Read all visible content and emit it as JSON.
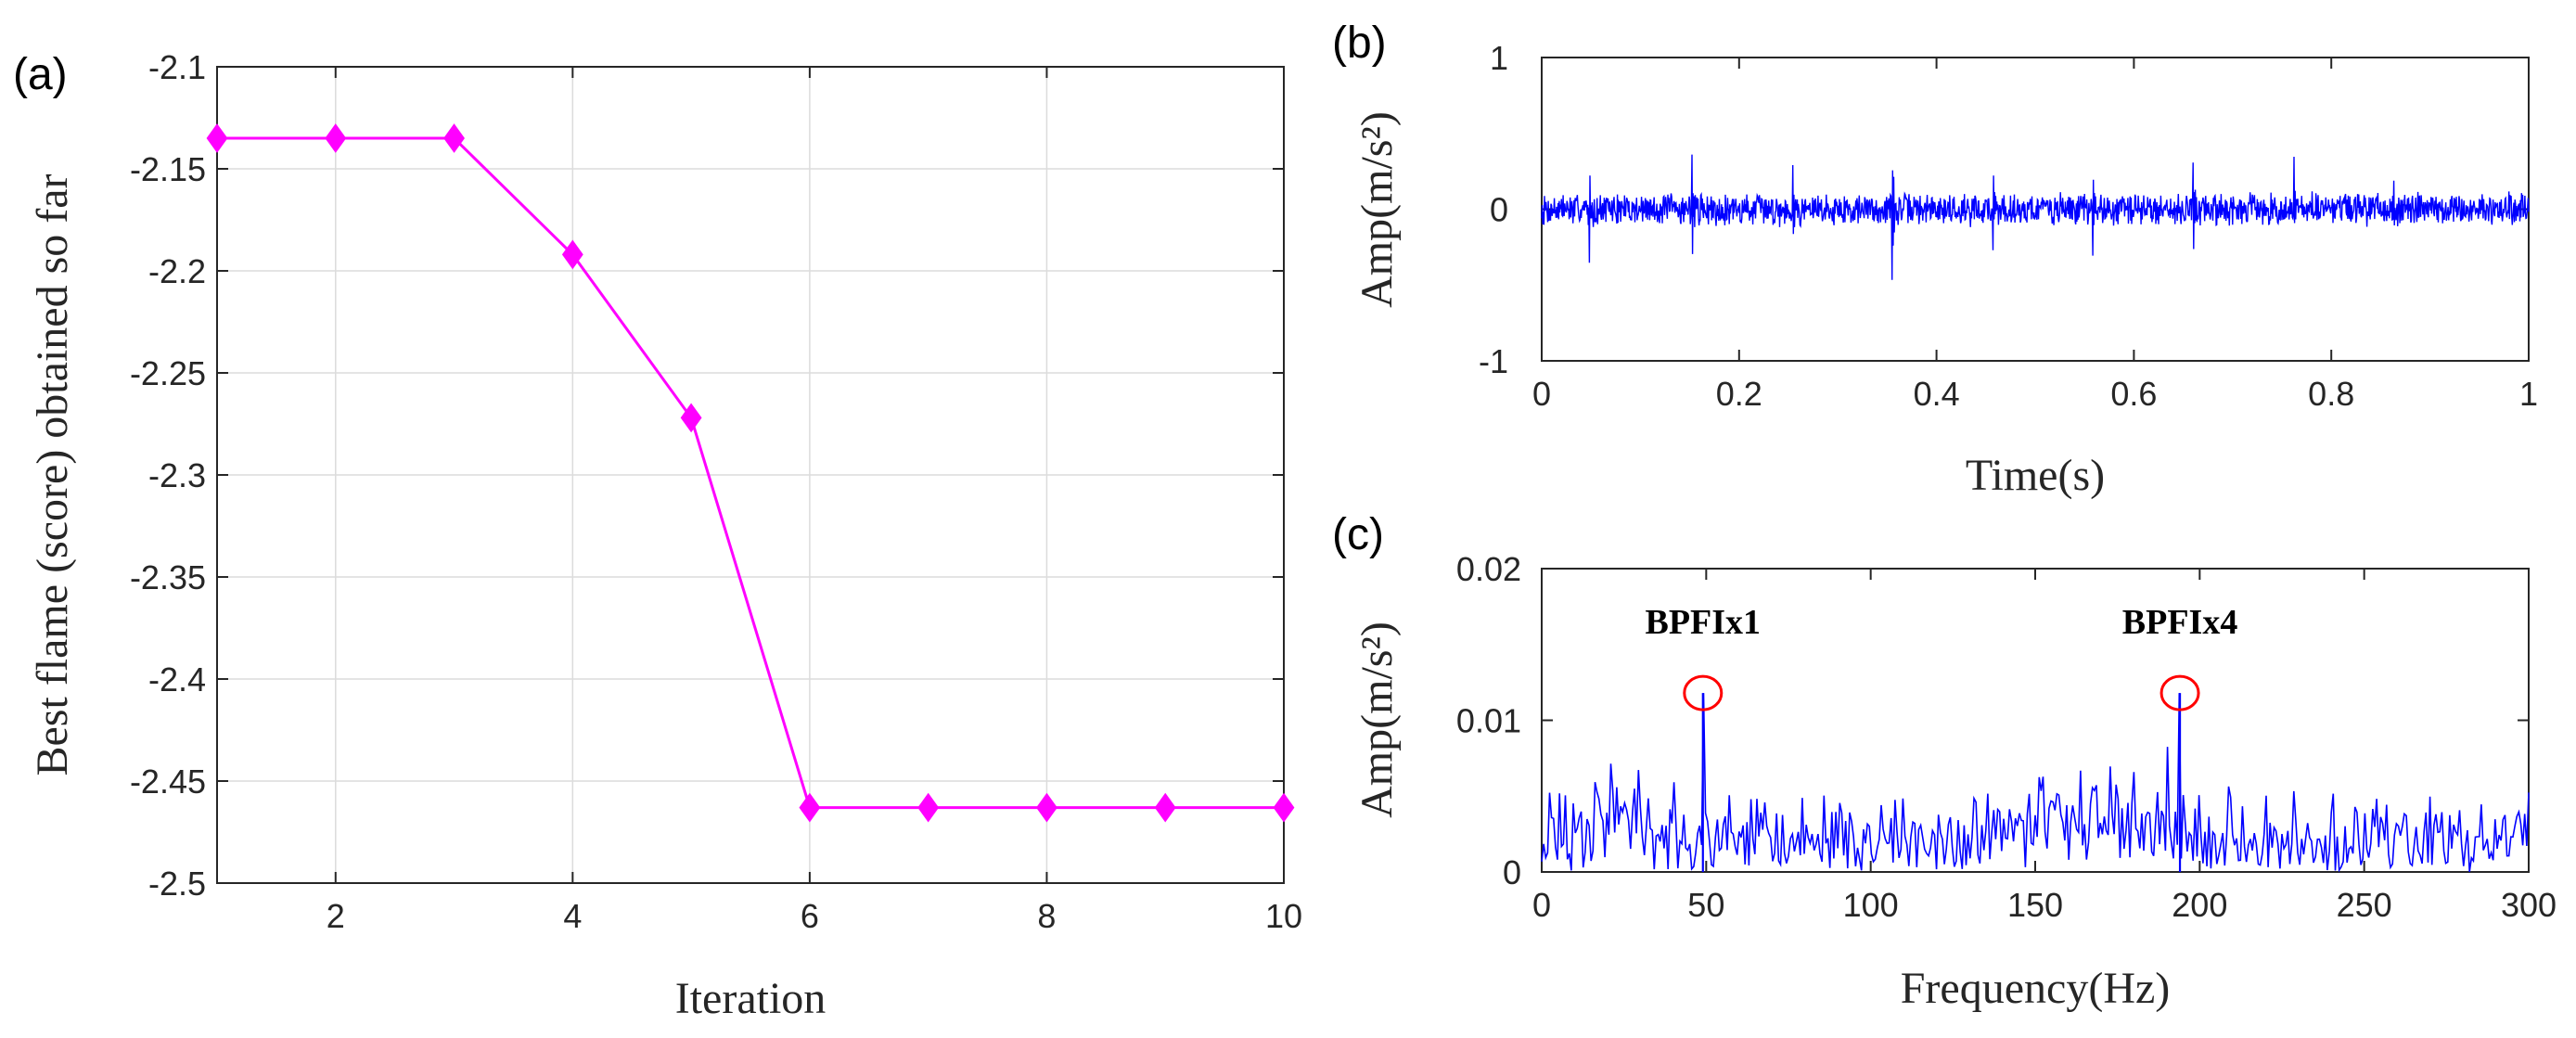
{
  "chart_data": [
    {
      "panel": "(a)",
      "type": "line",
      "xlabel": "Iteration",
      "ylabel": "Best flame (score) obtained so far",
      "xlim": [
        1,
        10
      ],
      "ylim": [
        -2.5,
        -2.1
      ],
      "xticks": [
        2,
        4,
        6,
        8,
        10
      ],
      "yticks": [
        -2.1,
        -2.15,
        -2.2,
        -2.25,
        -2.3,
        -2.35,
        -2.4,
        -2.45,
        -2.5
      ],
      "grid": true,
      "marker": "diamond",
      "color": "#ff00ff",
      "x": [
        1,
        2,
        3,
        4,
        5,
        6,
        7,
        8,
        9,
        10
      ],
      "y": [
        -2.135,
        -2.135,
        -2.135,
        -2.192,
        -2.272,
        -2.463,
        -2.463,
        -2.463,
        -2.463,
        -2.463
      ]
    },
    {
      "panel": "(b)",
      "type": "line",
      "xlabel": "Time(s)",
      "ylabel": "Amp(m/s²)",
      "xlim": [
        0,
        1
      ],
      "ylim": [
        -1,
        1
      ],
      "xticks": [
        0,
        0.2,
        0.4,
        0.6,
        0.8,
        1
      ],
      "yticks": [
        1,
        0,
        -1
      ],
      "grid": false,
      "color": "#0000ff",
      "description_values": {
        "noise_amplitude": 0.1,
        "impulse_times": [
          0.048,
          0.152,
          0.254,
          0.355,
          0.457,
          0.558,
          0.66,
          0.762,
          0.863
        ],
        "impulse_peaks": [
          0.53,
          0.4,
          0.48,
          0.5,
          0.38,
          0.35,
          0.32,
          0.3,
          0.28
        ]
      }
    },
    {
      "panel": "(c)",
      "type": "line",
      "xlabel": "Frequency(Hz)",
      "ylabel": "Amp(m/s²)",
      "xlim": [
        0,
        300
      ],
      "ylim": [
        0,
        0.02
      ],
      "xticks": [
        0,
        50,
        100,
        150,
        200,
        250,
        300
      ],
      "yticks": [
        0.02,
        0.01,
        0
      ],
      "grid": false,
      "color": "#0000ff",
      "annotations": [
        {
          "text": "BPFIx1",
          "x": 49,
          "y": 0.0118
        },
        {
          "text": "BPFIx4",
          "x": 194,
          "y": 0.0118
        }
      ],
      "peaks": [
        {
          "x": 49,
          "y": 0.0118
        },
        {
          "x": 194,
          "y": 0.0118
        }
      ],
      "noise_max": 0.01
    }
  ]
}
